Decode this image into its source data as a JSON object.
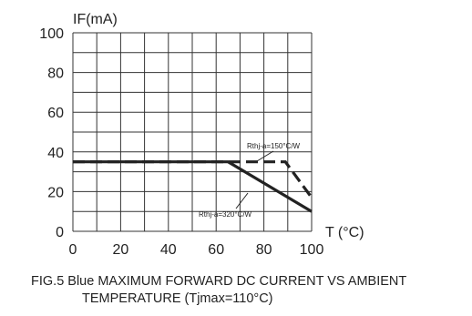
{
  "chart_data": {
    "type": "line",
    "xlabel": "T (°C)",
    "ylabel": "IF(mA)",
    "xlim": [
      0,
      100
    ],
    "ylim": [
      0,
      100
    ],
    "x_ticks": [
      0,
      20,
      40,
      60,
      80,
      100
    ],
    "y_ticks": [
      0,
      20,
      40,
      60,
      80,
      100
    ],
    "grid": true,
    "series": [
      {
        "label": "Rthj-a=150°C/W",
        "style": "dashed",
        "x": [
          0,
          89,
          100
        ],
        "y": [
          35,
          35,
          17
        ]
      },
      {
        "label": "Rthj-a=320°C/W",
        "style": "solid",
        "x": [
          0,
          65,
          100
        ],
        "y": [
          35,
          35,
          10
        ]
      }
    ],
    "caption_line1": "FIG.5 Blue MAXIMUM FORWARD DC CURRENT VS AMBIENT",
    "caption_line2": "TEMPERATURE (Tjmax=110°C)"
  }
}
